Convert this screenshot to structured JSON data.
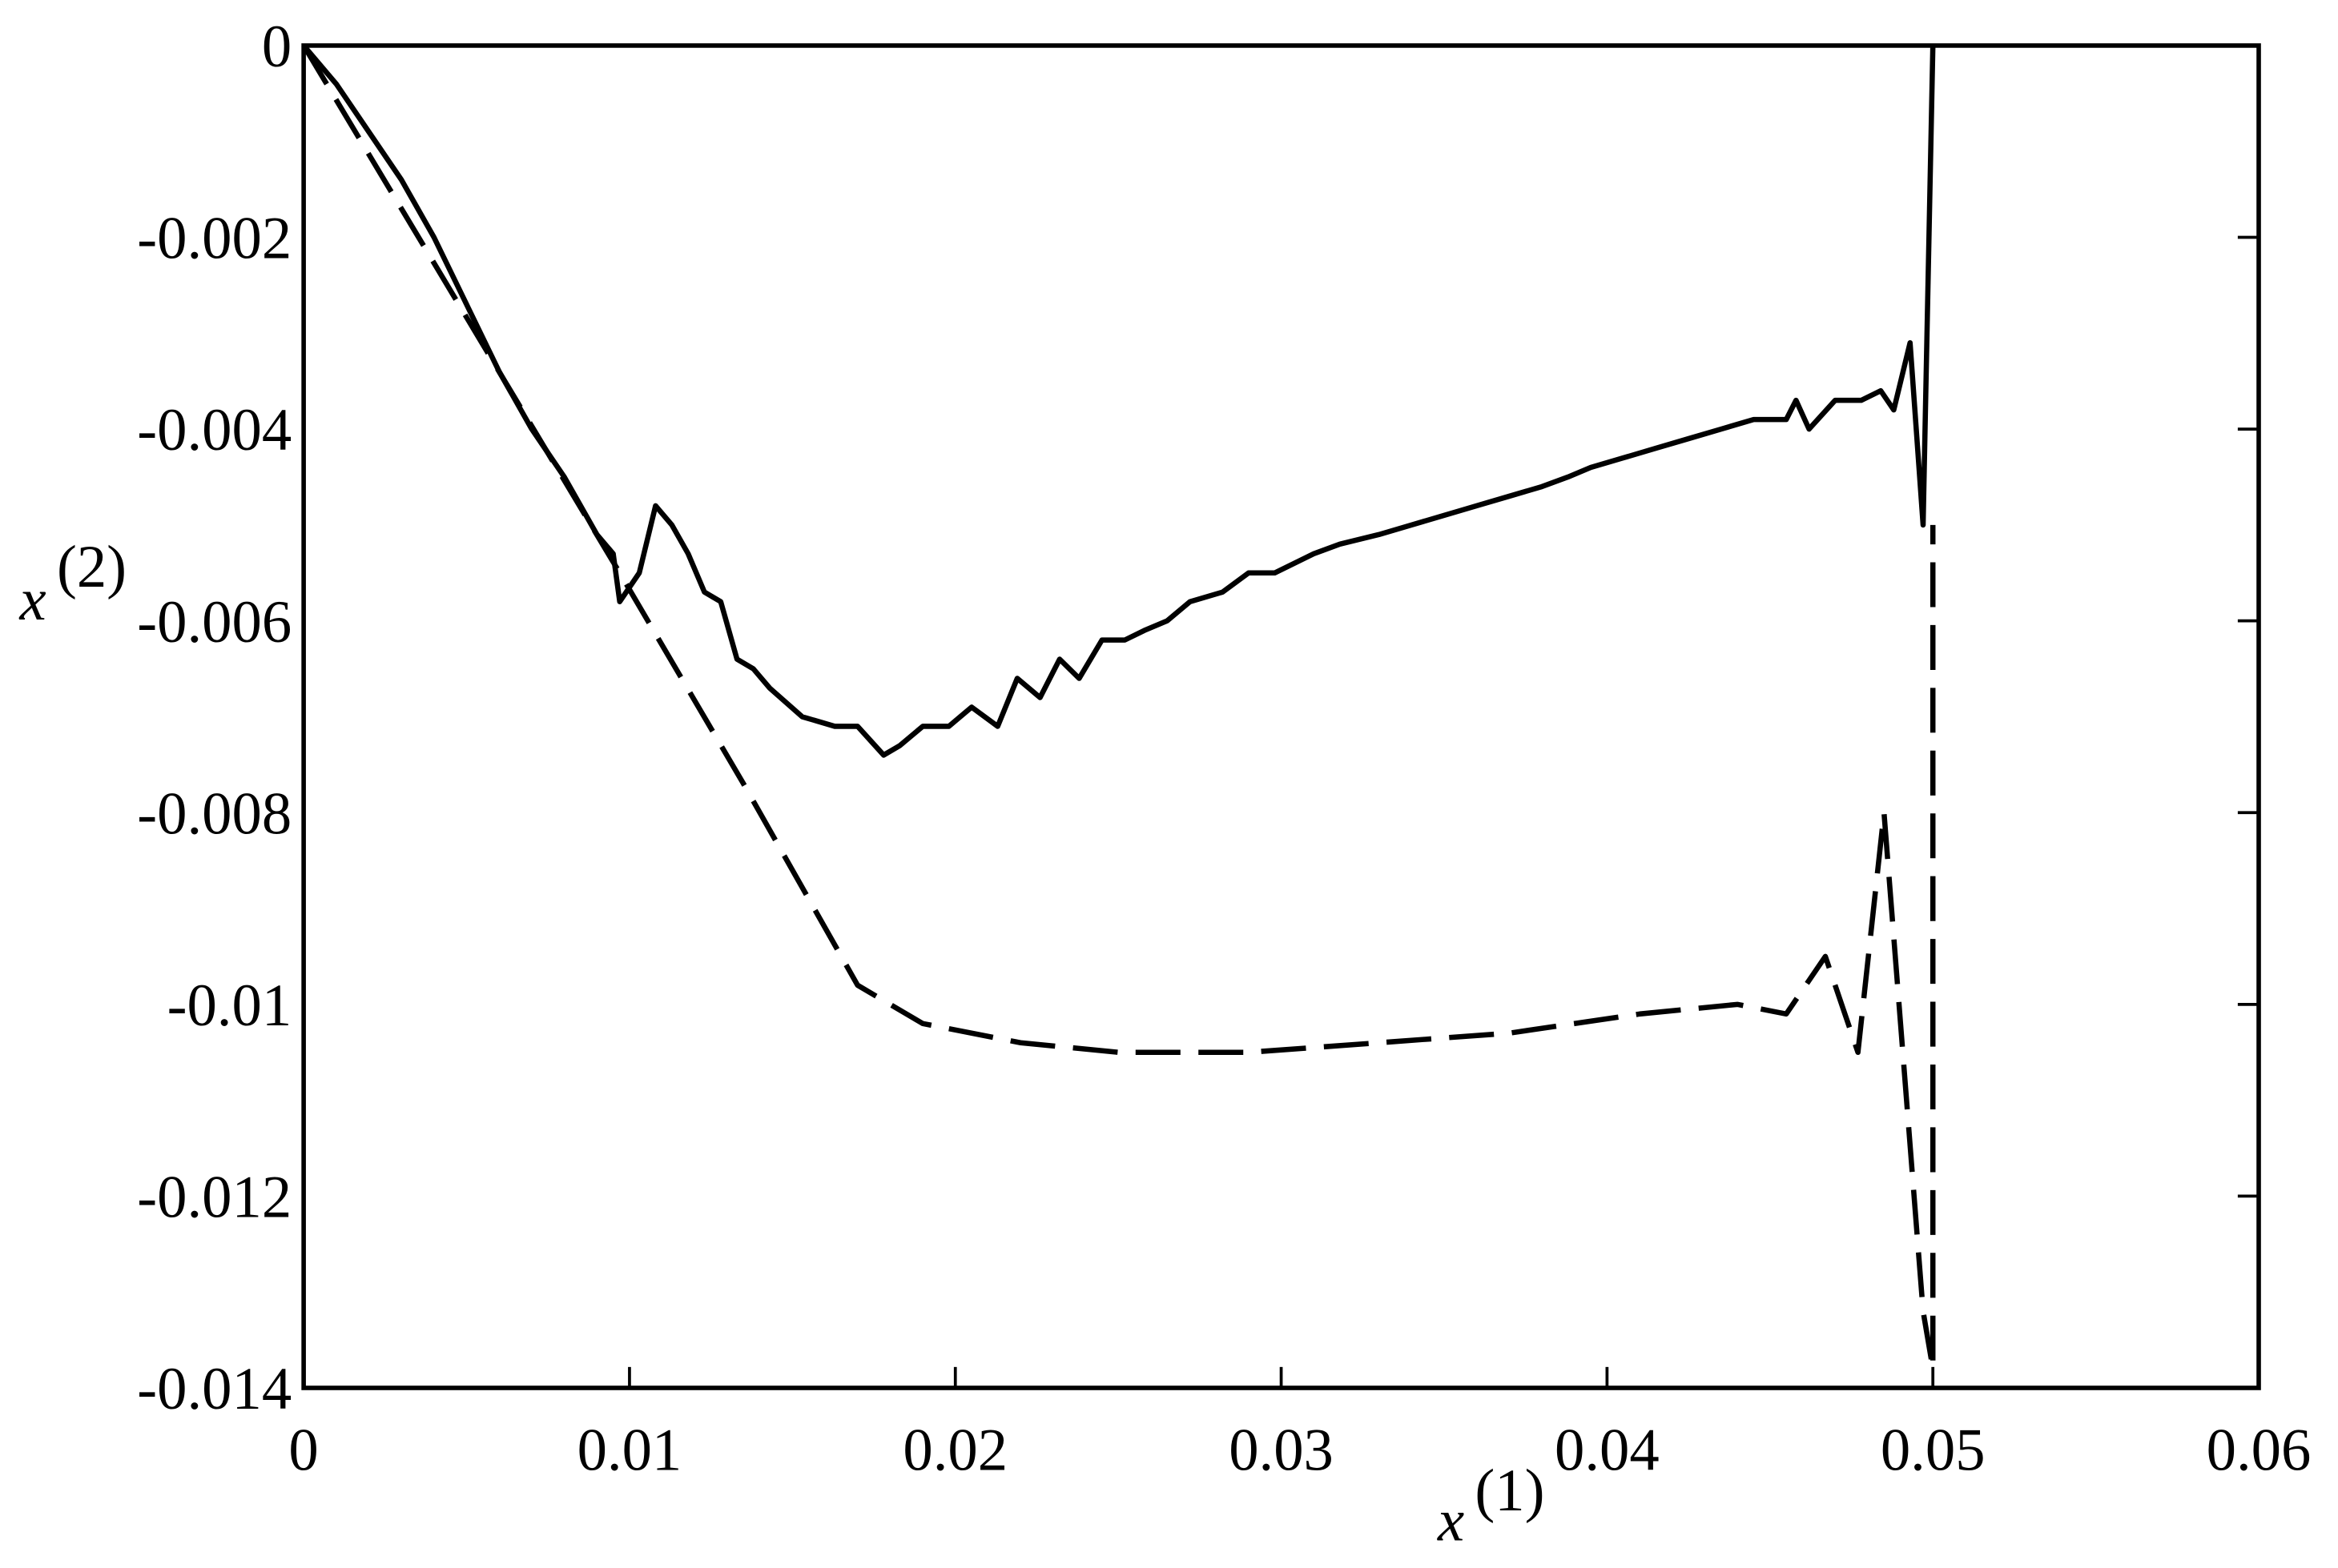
{
  "chart_data": {
    "type": "line",
    "xlabel": "x",
    "xlabel_sup": "(1)",
    "ylabel": "x",
    "ylabel_sup": "(2)",
    "xlim": [
      0,
      0.06
    ],
    "xticks": [
      0,
      0.01,
      0.02,
      0.03,
      0.04,
      0.05,
      0.06
    ],
    "ylim": [
      -0.014,
      0
    ],
    "yticks": [
      0,
      -0.002,
      -0.004,
      -0.006,
      -0.008,
      -0.01,
      -0.012,
      -0.014
    ],
    "series": [
      {
        "color": "#000000",
        "style": "solid",
        "x": [
          0,
          0.001,
          0.002,
          0.003,
          0.004,
          0.005,
          0.006,
          0.007,
          0.008,
          0.009,
          0.0095,
          0.0097,
          0.0103,
          0.0108,
          0.0113,
          0.0118,
          0.0123,
          0.0128,
          0.0133,
          0.0138,
          0.0143,
          0.0153,
          0.0163,
          0.017,
          0.0178,
          0.0183,
          0.019,
          0.0198,
          0.0205,
          0.0213,
          0.0219,
          0.0226,
          0.0232,
          0.0238,
          0.0245,
          0.0252,
          0.0258,
          0.0265,
          0.0272,
          0.0282,
          0.029,
          0.0298,
          0.031,
          0.0318,
          0.033,
          0.034,
          0.035,
          0.036,
          0.037,
          0.038,
          0.0388,
          0.0395,
          0.0405,
          0.0415,
          0.0425,
          0.0435,
          0.0445,
          0.0455,
          0.0458,
          0.0462,
          0.047,
          0.0478,
          0.0484,
          0.0488,
          0.0493,
          0.0497,
          0.05
        ],
        "values": [
          0,
          -0.0004,
          -0.0009,
          -0.0014,
          -0.002,
          -0.0027,
          -0.0034,
          -0.004,
          -0.0045,
          -0.0051,
          -0.0053,
          -0.0058,
          -0.0055,
          -0.0048,
          -0.005,
          -0.0053,
          -0.0057,
          -0.0058,
          -0.0064,
          -0.0065,
          -0.0067,
          -0.007,
          -0.0071,
          -0.0071,
          -0.0074,
          -0.0073,
          -0.0071,
          -0.0071,
          -0.0069,
          -0.0071,
          -0.0066,
          -0.0068,
          -0.0064,
          -0.0066,
          -0.0062,
          -0.0062,
          -0.0061,
          -0.006,
          -0.0058,
          -0.0057,
          -0.0055,
          -0.0055,
          -0.0053,
          -0.0052,
          -0.0051,
          -0.005,
          -0.0049,
          -0.0048,
          -0.0047,
          -0.0046,
          -0.0045,
          -0.0044,
          -0.0043,
          -0.0042,
          -0.0041,
          -0.004,
          -0.0039,
          -0.0039,
          -0.0037,
          -0.004,
          -0.0037,
          -0.0037,
          -0.0036,
          -0.0038,
          -0.0031,
          -0.005,
          0
        ]
      },
      {
        "color": "#000000",
        "style": "dashed",
        "x": [
          0,
          0.0097,
          0.0135,
          0.017,
          0.019,
          0.022,
          0.025,
          0.029,
          0.033,
          0.037,
          0.041,
          0.044,
          0.0455,
          0.0467,
          0.0477,
          0.0485,
          0.0497,
          0.05,
          0.05
        ],
        "values": [
          0,
          -0.0055,
          -0.0077,
          -0.0098,
          -0.0102,
          -0.0104,
          -0.0105,
          -0.0105,
          -0.0104,
          -0.0103,
          -0.0101,
          -0.01,
          -0.0101,
          -0.0095,
          -0.0105,
          -0.008,
          -0.0132,
          -0.0138,
          -0.005
        ]
      }
    ]
  }
}
